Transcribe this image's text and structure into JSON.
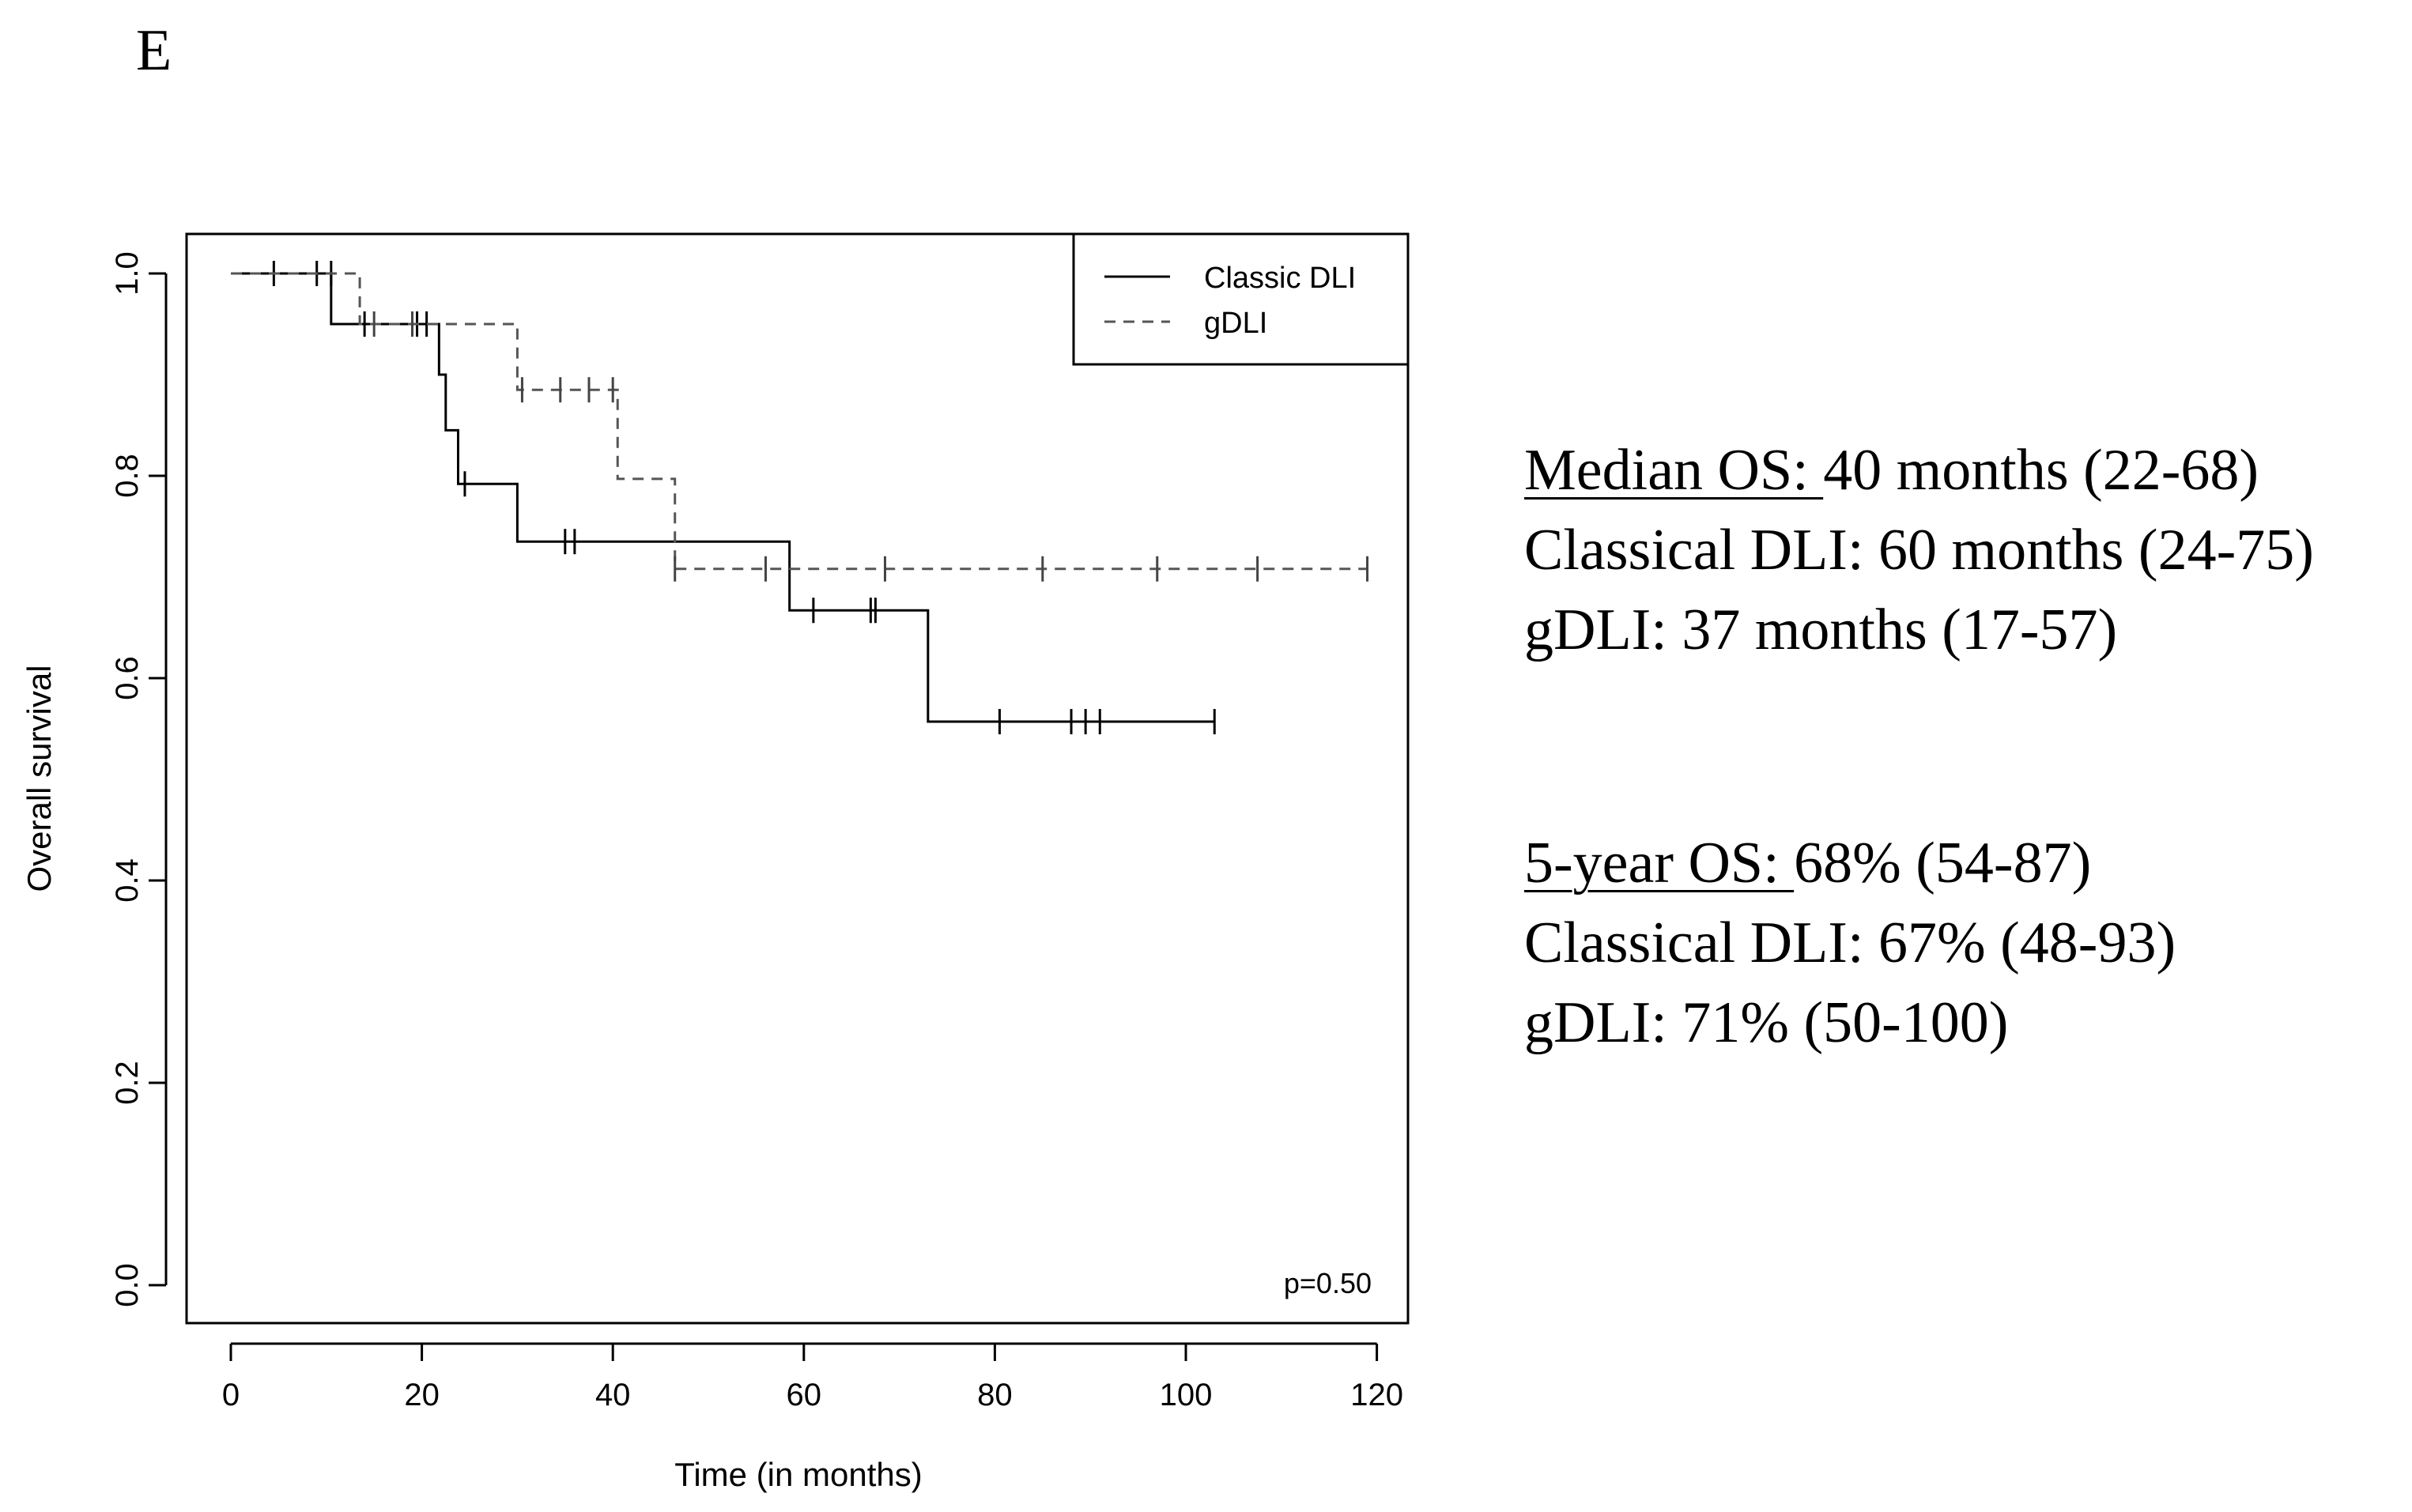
{
  "panel_label": "E",
  "stats": {
    "median": {
      "label": "Median OS: ",
      "value": "40 months (22-68)",
      "classical": "Classical DLI: 60 months (24-75)",
      "gdli": "gDLI: 37 months (17-57)"
    },
    "five_year": {
      "label": "5-year OS: ",
      "value": "68% (54-87)",
      "classical": "Classical DLI: 67% (48-93)",
      "gdli": "gDLI: 71% (50-100)"
    }
  },
  "chart_data": {
    "type": "line",
    "subtype": "kaplan-meier",
    "xlabel": "Time (in months)",
    "ylabel": "Overall survival",
    "xlim": [
      0,
      120
    ],
    "ylim": [
      0,
      1
    ],
    "xticks": [
      0,
      20,
      40,
      60,
      80,
      100,
      120
    ],
    "yticks": [
      0.0,
      0.2,
      0.4,
      0.6,
      0.8,
      1.0
    ],
    "ytick_labels": [
      "0.0",
      "0.2",
      "0.4",
      "0.6",
      "0.8",
      "1.0"
    ],
    "legend_position": "top-right",
    "annotation": "p=0.50",
    "series": [
      {
        "name": "Classic DLI",
        "style": "solid",
        "steps": [
          [
            0,
            1.0
          ],
          [
            10.5,
            0.95
          ],
          [
            21.8,
            0.9
          ],
          [
            22.5,
            0.845
          ],
          [
            23.8,
            0.792
          ],
          [
            30.0,
            0.735
          ],
          [
            58.5,
            0.667
          ],
          [
            73.0,
            0.557
          ],
          [
            103.0,
            0.557
          ]
        ],
        "censored": [
          [
            4.5,
            1.0
          ],
          [
            9.0,
            1.0
          ],
          [
            10.5,
            1.0
          ],
          [
            14.0,
            0.95
          ],
          [
            19.5,
            0.95
          ],
          [
            20.5,
            0.95
          ],
          [
            24.5,
            0.792
          ],
          [
            35.0,
            0.735
          ],
          [
            36.0,
            0.735
          ],
          [
            61.0,
            0.667
          ],
          [
            67.0,
            0.667
          ],
          [
            67.5,
            0.667
          ],
          [
            80.5,
            0.557
          ],
          [
            88.0,
            0.557
          ],
          [
            89.5,
            0.557
          ],
          [
            91.0,
            0.557
          ],
          [
            103.0,
            0.557
          ]
        ]
      },
      {
        "name": "gDLI",
        "style": "dashed",
        "steps": [
          [
            0,
            1.0
          ],
          [
            13.5,
            0.95
          ],
          [
            30.0,
            0.885
          ],
          [
            40.5,
            0.797
          ],
          [
            46.5,
            0.708
          ],
          [
            119.0,
            0.708
          ]
        ],
        "censored": [
          [
            15.0,
            0.95
          ],
          [
            19.0,
            0.95
          ],
          [
            30.5,
            0.885
          ],
          [
            34.5,
            0.885
          ],
          [
            37.5,
            0.885
          ],
          [
            40.0,
            0.885
          ],
          [
            46.5,
            0.708
          ],
          [
            56.0,
            0.708
          ],
          [
            68.5,
            0.708
          ],
          [
            85.0,
            0.708
          ],
          [
            97.0,
            0.708
          ],
          [
            107.5,
            0.708
          ],
          [
            119.0,
            0.708
          ]
        ]
      }
    ]
  }
}
